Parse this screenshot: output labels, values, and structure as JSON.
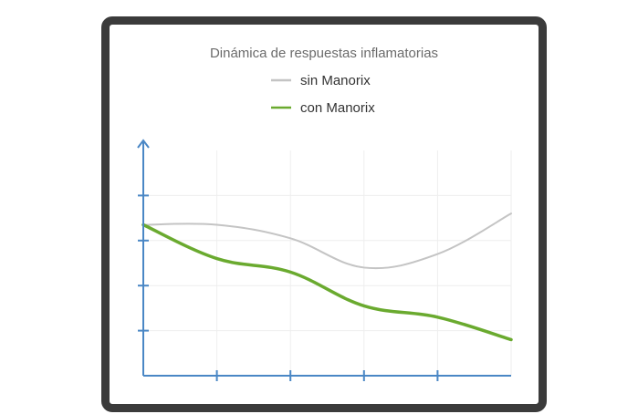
{
  "chart_data": {
    "type": "line",
    "title": "Dinámica de respuestas inflamatorias",
    "xlabel": "",
    "ylabel": "",
    "x": [
      0,
      1,
      2,
      3,
      4,
      5
    ],
    "xlim": [
      0,
      5
    ],
    "ylim": [
      0,
      5
    ],
    "grid": true,
    "legend_position": "top",
    "series": [
      {
        "name": "sin Manorix",
        "color": "#c4c4c4",
        "values": [
          3.35,
          3.35,
          3.05,
          2.4,
          2.7,
          3.6
        ]
      },
      {
        "name": "con Manorix",
        "color": "#6aaa2f",
        "values": [
          3.35,
          2.6,
          2.3,
          1.55,
          1.3,
          0.8
        ]
      }
    ],
    "axis_color": "#4a87c5",
    "grid_color": "#eeeeee"
  }
}
